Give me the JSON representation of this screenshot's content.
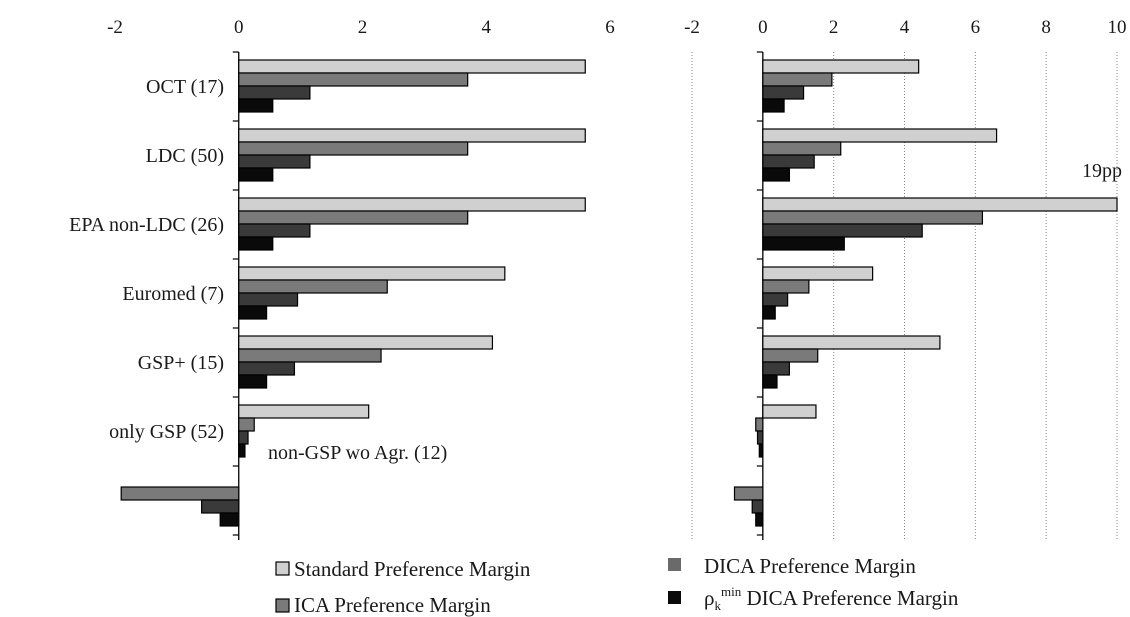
{
  "chart_data": [
    {
      "type": "bar",
      "orientation": "horizontal",
      "categories": [
        "OCT (17)",
        "LDC (50)",
        "EPA non-LDC (26)",
        "Euromed (7)",
        "GSP+ (15)",
        "only GSP (52)",
        "non-GSP wo Agr. (12)"
      ],
      "series": [
        {
          "name": "Standard Preference Margin",
          "color": "#d0d0d0",
          "values": [
            5.6,
            5.6,
            5.6,
            4.3,
            4.1,
            2.1,
            null
          ]
        },
        {
          "name": "ICA Preference Margin",
          "color": "#7a7a7a",
          "values": [
            3.7,
            3.7,
            3.7,
            2.4,
            2.3,
            0.25,
            -1.9
          ]
        },
        {
          "name": "",
          "color": "#3a3a3a",
          "values": [
            1.15,
            1.15,
            1.15,
            0.95,
            0.9,
            0.15,
            -0.6
          ]
        },
        {
          "name": "",
          "color": "#0a0a0a",
          "values": [
            0.55,
            0.55,
            0.55,
            0.45,
            0.45,
            0.1,
            -0.3
          ]
        }
      ],
      "xlim": [
        -2,
        6
      ],
      "xticks": [
        "-2",
        "0",
        "2",
        "4",
        "6"
      ],
      "annotation": "non-GSP wo Agr. (12)",
      "grid": false
    },
    {
      "type": "bar",
      "orientation": "horizontal",
      "categories": [
        "OCT (17)",
        "LDC (50)",
        "EPA non-LDC (26)",
        "Euromed (7)",
        "GSP+ (15)",
        "only GSP (52)",
        "non-GSP wo Agr. (12)"
      ],
      "series": [
        {
          "name": "Standard Preference Margin",
          "color": "#d0d0d0",
          "values": [
            4.4,
            6.6,
            10,
            3.1,
            5.0,
            1.5,
            null
          ]
        },
        {
          "name": "DICA Preference Margin",
          "color": "#7a7a7a",
          "values": [
            1.95,
            2.2,
            6.2,
            1.3,
            1.55,
            -0.2,
            -0.8
          ]
        },
        {
          "name": "",
          "color": "#3a3a3a",
          "values": [
            1.15,
            1.45,
            4.5,
            0.7,
            0.75,
            -0.15,
            -0.3
          ]
        },
        {
          "name": "ρ_k^min DICA Preference Margin",
          "color": "#0a0a0a",
          "values": [
            0.6,
            0.75,
            2.3,
            0.35,
            0.4,
            -0.1,
            -0.2
          ]
        }
      ],
      "xlim": [
        -2,
        10
      ],
      "xticks": [
        "-2",
        "0",
        "2",
        "4",
        "6",
        "8",
        "10"
      ],
      "annotation": "19pp",
      "grid": true
    }
  ],
  "legend": {
    "items": [
      {
        "label": "Standard Preference Margin",
        "color": "#d0d0d0"
      },
      {
        "label": "ICA Preference Margin",
        "color": "#7a7a7a"
      },
      {
        "label": "DICA Preference Margin",
        "color": "#6a6a6a"
      },
      {
        "label_main": "ρ",
        "label_sub": "k",
        "label_sup": "min",
        "label_rest": " DICA Preference Margin",
        "color": "#0a0a0a"
      }
    ]
  }
}
